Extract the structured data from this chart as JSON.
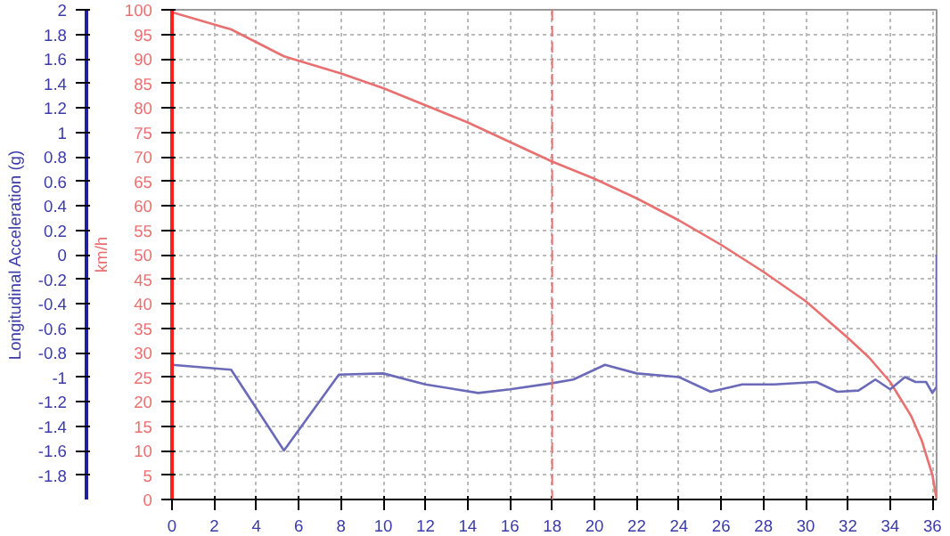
{
  "chart_data": {
    "type": "line",
    "ylabel": "km/h",
    "y2label": "Longitudinal Acceleration (g)",
    "x": [
      0,
      2.8,
      5.3,
      8,
      10,
      12,
      14,
      16,
      18,
      20,
      22,
      24,
      26,
      28,
      30,
      32,
      33,
      34,
      35,
      35.5,
      36,
      36.2
    ],
    "series": [
      {
        "color": "#e87070",
        "values": [
          99.5,
          96,
          90.5,
          87,
          84,
          80.5,
          77,
          73,
          69,
          65.5,
          61.5,
          57,
          52,
          46.5,
          40.5,
          33,
          29,
          24,
          17,
          12,
          5,
          0
        ]
      },
      {
        "color": "#6a6ab8",
        "axis": "y2",
        "x": [
          0,
          2.8,
          5.3,
          7.9,
          10,
          12,
          14.5,
          16,
          18,
          19,
          20.5,
          22,
          24,
          25.5,
          27,
          28.5,
          30.5,
          31.5,
          32.5,
          33.3,
          34,
          34.7,
          35.2,
          35.7,
          36,
          36.2,
          36.2
        ],
        "values": [
          -0.9,
          -0.94,
          -1.6,
          -0.98,
          -0.97,
          -1.06,
          -1.13,
          -1.1,
          -1.05,
          -1.02,
          -0.9,
          -0.97,
          -1,
          -1.12,
          -1.06,
          -1.06,
          -1.04,
          -1.12,
          -1.11,
          -1.02,
          -1.1,
          -1,
          -1.04,
          -1.04,
          -1.13,
          -1.08,
          0
        ]
      }
    ],
    "xlim": [
      0,
      36.2
    ],
    "xticks": [
      0,
      2,
      4,
      6,
      8,
      10,
      12,
      14,
      16,
      18,
      20,
      22,
      24,
      26,
      28,
      30,
      32,
      34,
      36
    ],
    "ylim": [
      0,
      100
    ],
    "yticks": [
      0,
      5,
      10,
      15,
      20,
      25,
      30,
      35,
      40,
      45,
      50,
      55,
      60,
      65,
      70,
      75,
      80,
      85,
      90,
      95,
      100
    ],
    "y2lim": [
      -2,
      2
    ],
    "y2ticks": [
      -1.8,
      -1.6,
      -1.4,
      -1.2,
      -1,
      -0.8,
      -0.6,
      -0.4,
      -0.2,
      0,
      0.2,
      0.4,
      0.6,
      0.8,
      1,
      1.2,
      1.4,
      1.6,
      1.8,
      2
    ],
    "ref_lines": [
      {
        "axis": "x",
        "value": 18,
        "color": "#e87070",
        "line_style": "dashed"
      }
    ],
    "grid": true,
    "marker": "none",
    "line_style": "solid"
  }
}
